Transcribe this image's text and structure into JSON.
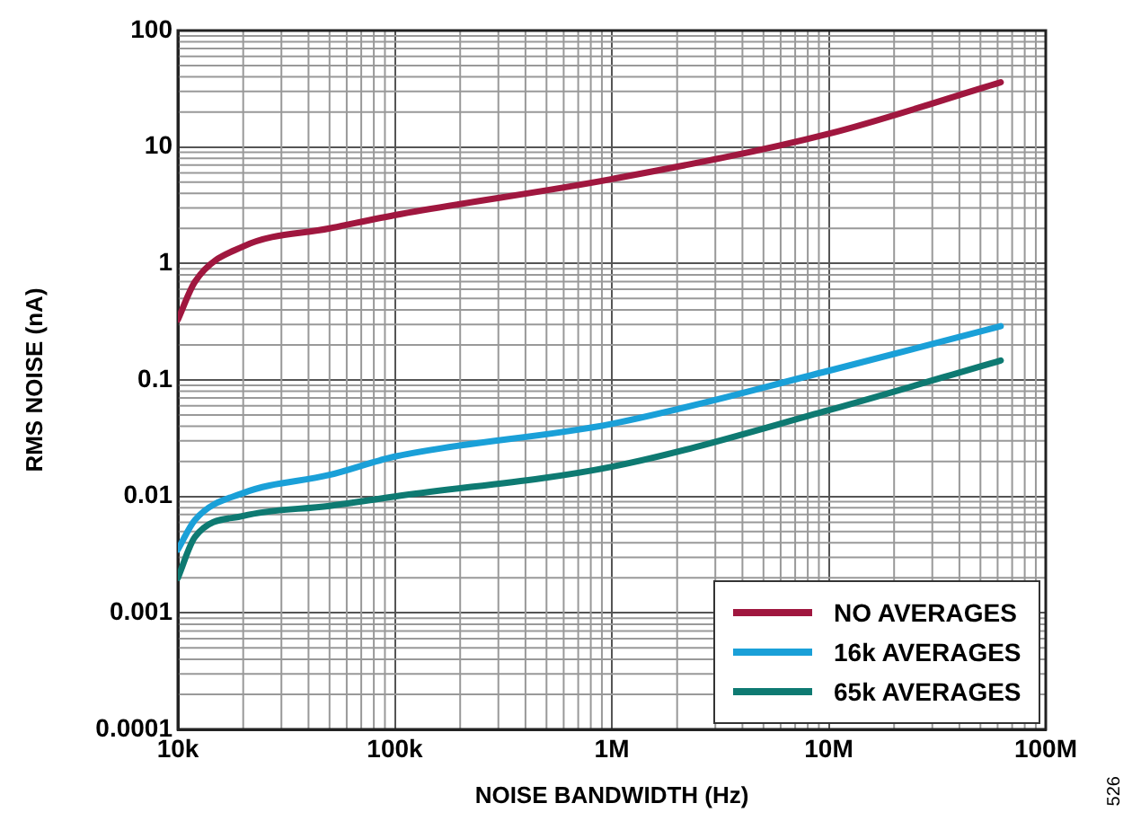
{
  "chart_data": {
    "type": "line",
    "xlabel": "NOISE BANDWIDTH (Hz)",
    "ylabel": "RMS NOISE (nA)",
    "x": [
      10000,
      12000,
      20000,
      50000,
      100000,
      1000000,
      10000000,
      62000000
    ],
    "series": [
      {
        "name": "NO AVERAGES",
        "color": "#a0173f",
        "values": [
          0.33,
          0.7,
          1.4,
          2.0,
          2.6,
          5.3,
          13,
          36
        ]
      },
      {
        "name": "16k AVERAGES",
        "color": "#1aa0d8",
        "values": [
          0.0035,
          0.0063,
          0.0107,
          0.0153,
          0.022,
          0.042,
          0.12,
          0.29
        ]
      },
      {
        "name": "65k AVERAGES",
        "color": "#0e7a72",
        "values": [
          0.002,
          0.0045,
          0.0068,
          0.0083,
          0.01,
          0.018,
          0.055,
          0.147
        ]
      }
    ],
    "log": "xy",
    "xlim": [
      10000,
      100000000
    ],
    "xticks": [
      {
        "value": 10000,
        "label": "10k"
      },
      {
        "value": 100000,
        "label": "100k"
      },
      {
        "value": 1000000,
        "label": "1M"
      },
      {
        "value": 10000000,
        "label": "10M"
      },
      {
        "value": 100000000,
        "label": "100M"
      }
    ],
    "ylim": [
      0.0001,
      100
    ],
    "yticks": [
      0.0001,
      0.001,
      0.01,
      0.1,
      1,
      10,
      100
    ],
    "grid": true,
    "legend": "bottom right",
    "marker": "none",
    "line_style": "solid",
    "annotations": [
      "526"
    ]
  }
}
